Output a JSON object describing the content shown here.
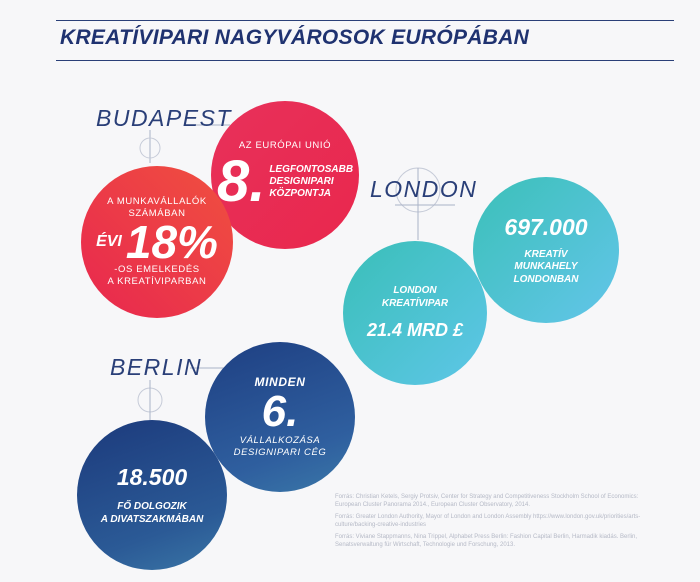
{
  "title": "KREATÍVIPARI NAGYVÁROSOK EURÓPÁBAN",
  "cities": {
    "budapest": "BUDAPEST",
    "london": "LONDON",
    "berlin": "BERLIN"
  },
  "budapest": {
    "eu": {
      "top": "AZ EURÓPAI UNIÓ",
      "number": "8.",
      "line1": "LEGFONTOSABB",
      "line2": "DESIGNIPARI",
      "line3": "KÖZPONTJA"
    },
    "growth": {
      "top1": "A MUNKAVÁLLALÓK",
      "top2": "SZÁMÁBAN",
      "prefix": "ÉVI",
      "number": "18%",
      "bottom1": "-OS EMELKEDÉS",
      "bottom2": "A KREATÍVIPARBAN"
    }
  },
  "london": {
    "jobs": {
      "number": "697.000",
      "line1": "KREATÍV",
      "line2": "MUNKAHELY",
      "line3": "LONDONBAN"
    },
    "industry": {
      "line1": "LONDON",
      "line2": "KREATÍVIPAR",
      "value": "21.4 MRD £"
    }
  },
  "berlin": {
    "sixth": {
      "top": "MINDEN",
      "number": "6.",
      "line1": "VÁLLALKOZÁSA",
      "line2": "DESIGNIPARI CÉG"
    },
    "fashion": {
      "number": "18.500",
      "line1": "FŐ DOLGOZIK",
      "line2": "A DIVATSZAKMÁBAN"
    }
  },
  "footnotes": [
    "Forrás: Christian Ketels, Sergiy Protsiv, Center for Strategy and Competitiveness Stockholm School of Economics: European Cluster Panorama 2014., European Cluster Observatory, 2014.",
    "Forrás: Greater London Authority, Mayor of London and London Assembly https://www.london.gov.uk/priorities/arts-culture/backing-creative-industries",
    "Forrás: Viviane Stappmanns, Nina Trippel, Alphabet Press Berlin: Fashion Capital Berlin, Harmadik kiadás. Berlin, Senatsverwaltung für Wirtschaft, Technologie und Forschung, 2013."
  ],
  "colors": {
    "navy": "#1f3270",
    "pink": "#e8315a",
    "red_orange": "#ee4a48",
    "teal": "#3dbfbd",
    "sky": "#5fc6e6",
    "blue_dark": "#2a4a86"
  }
}
